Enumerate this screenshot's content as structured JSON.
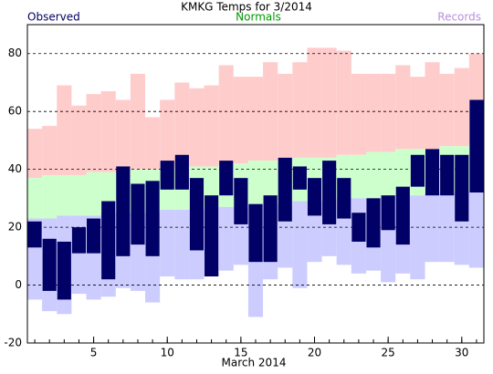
{
  "chart_data": {
    "type": "range_bar",
    "title": "KMKG Temps for 3/2014",
    "xlabel": "March 2014",
    "x": [
      1,
      2,
      3,
      4,
      5,
      6,
      7,
      8,
      9,
      10,
      11,
      12,
      13,
      14,
      15,
      16,
      17,
      18,
      19,
      20,
      21,
      22,
      23,
      24,
      25,
      26,
      27,
      28,
      29,
      30,
      31
    ],
    "xlim": [
      0.5,
      31.5
    ],
    "xticks": [
      5,
      10,
      15,
      20,
      25,
      30
    ],
    "ylim": [
      -20,
      90
    ],
    "yticks": [
      -20,
      0,
      20,
      40,
      60,
      80
    ],
    "grid": true,
    "observed": {
      "name": "Observed",
      "color": "#000066",
      "high": [
        22,
        16,
        15,
        20,
        23,
        29,
        41,
        35,
        36,
        43,
        45,
        37,
        31,
        43,
        37,
        28,
        31,
        44,
        41,
        37,
        43,
        37,
        25,
        30,
        31,
        34,
        45,
        47,
        45,
        45,
        64
      ],
      "low": [
        13,
        -2,
        -5,
        11,
        11,
        2,
        10,
        14,
        10,
        33,
        33,
        12,
        3,
        31,
        21,
        8,
        8,
        22,
        33,
        24,
        21,
        23,
        15,
        13,
        19,
        14,
        34,
        31,
        31,
        22,
        32
      ]
    },
    "normals": {
      "name": "Normals",
      "color": "#ccffcc",
      "label_color": "#009900",
      "high": [
        37,
        38,
        38,
        38,
        39,
        39,
        39,
        40,
        40,
        40,
        41,
        41,
        41,
        42,
        42,
        43,
        43,
        43,
        44,
        44,
        44,
        45,
        45,
        46,
        46,
        47,
        47,
        47,
        48,
        48,
        49
      ],
      "low": [
        23,
        23,
        24,
        24,
        24,
        25,
        25,
        25,
        25,
        26,
        26,
        26,
        27,
        27,
        27,
        28,
        28,
        28,
        29,
        29,
        29,
        30,
        30,
        30,
        31,
        31,
        31,
        32,
        32,
        32,
        32
      ]
    },
    "records": {
      "name": "Records",
      "high_color": "#ffcccc",
      "low_color": "#ccccff",
      "label_color": "#b890e0",
      "high": [
        54,
        55,
        69,
        62,
        66,
        67,
        64,
        73,
        58,
        64,
        70,
        68,
        69,
        76,
        72,
        72,
        77,
        73,
        77,
        82,
        82,
        81,
        73,
        73,
        73,
        76,
        72,
        77,
        73,
        75,
        80
      ],
      "low": [
        -5,
        -9,
        -10,
        -3,
        -5,
        -4,
        -1,
        -2,
        -6,
        3,
        2,
        2,
        3,
        5,
        7,
        -11,
        2,
        6,
        -1,
        8,
        10,
        7,
        4,
        5,
        1,
        4,
        2,
        8,
        8,
        7,
        6
      ]
    }
  }
}
